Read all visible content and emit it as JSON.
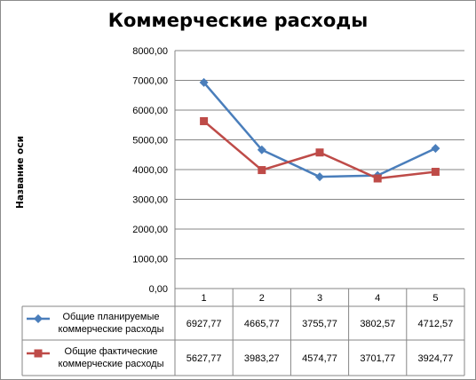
{
  "chart_data": {
    "type": "line",
    "title": "Коммерческие расходы",
    "xlabel": "",
    "ylabel": "Название оси",
    "categories": [
      "1",
      "2",
      "3",
      "4",
      "5"
    ],
    "ylim": [
      0,
      8000
    ],
    "y_ticks": [
      "0,00",
      "1000,00",
      "2000,00",
      "3000,00",
      "4000,00",
      "5000,00",
      "6000,00",
      "7000,00",
      "8000,00"
    ],
    "grid": true,
    "legend_placement": "bottom data table",
    "series": [
      {
        "name": "Общие планируемые коммерческие расходы",
        "name_lines": [
          "Общие планируемые",
          "коммерческие расходы"
        ],
        "values": [
          6927.77,
          4665.77,
          3755.77,
          3802.57,
          4712.57
        ],
        "labels": [
          "6927,77",
          "4665,77",
          "3755,77",
          "3802,57",
          "4712,57"
        ],
        "color": "#4a7ebb",
        "marker": "diamond"
      },
      {
        "name": "Общие фактические коммерческие расходы",
        "name_lines": [
          "Общие фактические",
          "коммерческие расходы"
        ],
        "values": [
          5627.77,
          3983.27,
          4574.77,
          3701.77,
          3924.77
        ],
        "labels": [
          "5627,77",
          "3983,27",
          "4574,77",
          "3701,77",
          "3924,77"
        ],
        "color": "#be4b48",
        "marker": "square"
      }
    ]
  }
}
